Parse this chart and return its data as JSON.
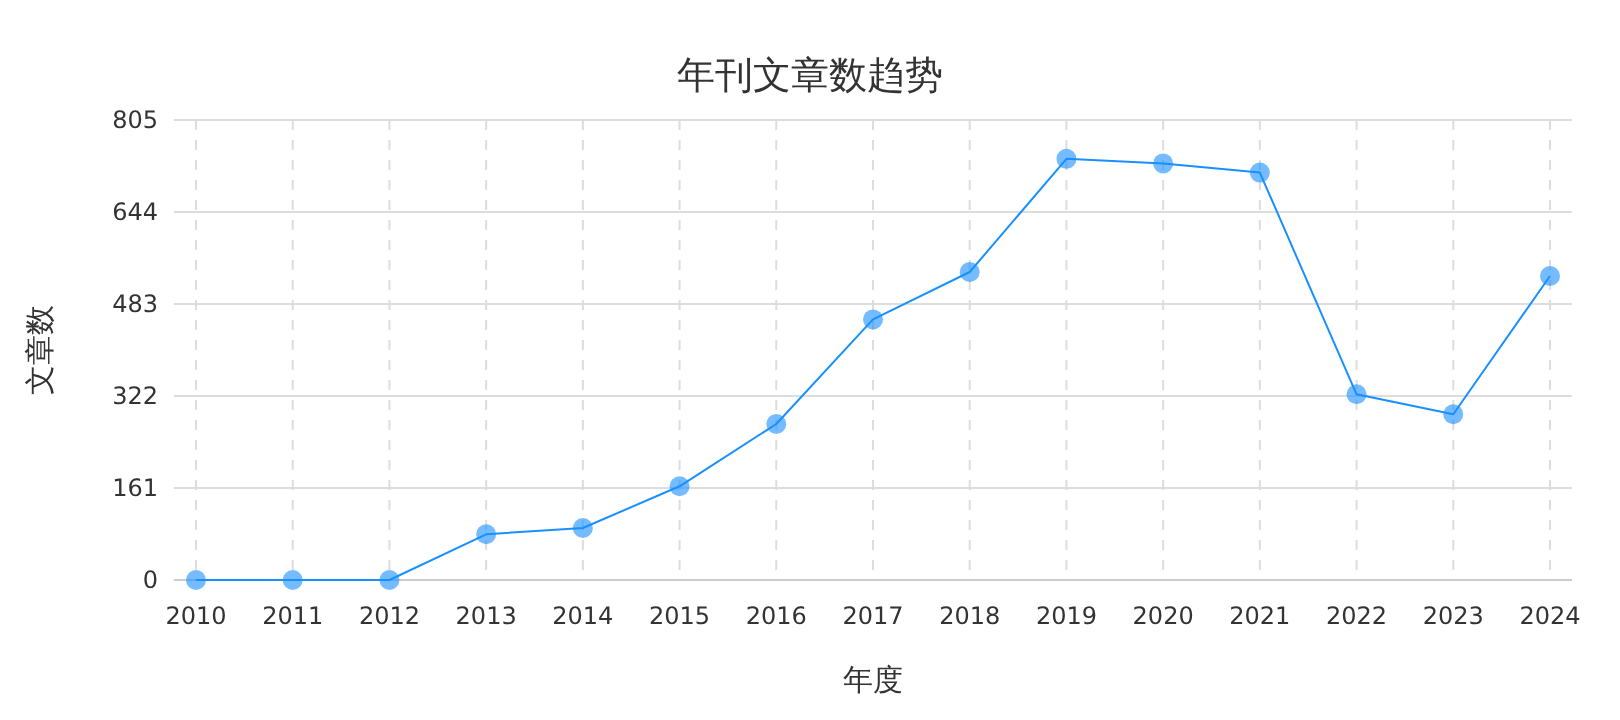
{
  "chart_data": {
    "type": "line",
    "title": "年刊文章数趋势",
    "xlabel": "年度",
    "ylabel": "文章数",
    "categories": [
      "2010",
      "2011",
      "2012",
      "2013",
      "2014",
      "2015",
      "2016",
      "2017",
      "2018",
      "2019",
      "2020",
      "2021",
      "2022",
      "2023",
      "2024"
    ],
    "series": [
      {
        "color": "#1890ff",
        "values": [
          0,
          0,
          0,
          80,
          91,
          164,
          273,
          456,
          539,
          737,
          729,
          713,
          325,
          290,
          532
        ]
      }
    ],
    "ylim": [
      0,
      805
    ],
    "yticks": [
      0,
      161,
      322,
      483,
      644,
      805
    ],
    "grid": true,
    "marker": "circle",
    "line_style": "solid"
  }
}
